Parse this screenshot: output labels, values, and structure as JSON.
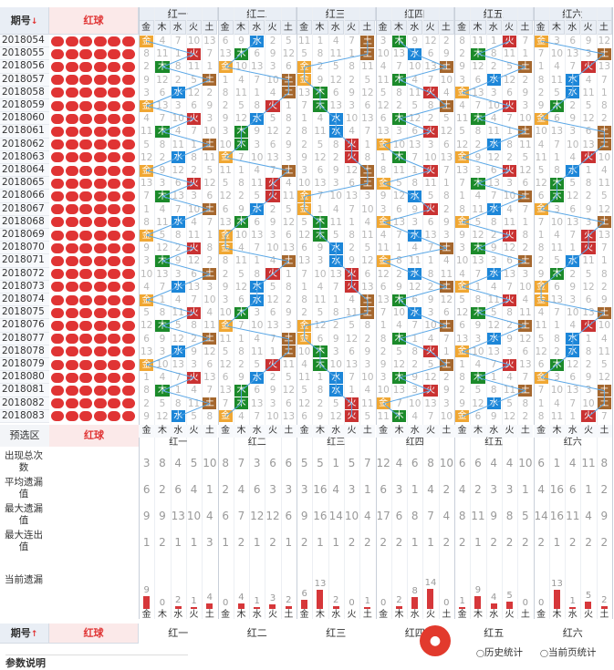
{
  "header": {
    "period_label": "期号",
    "period_sort_icon": "↓",
    "red_label": "红球",
    "groups": [
      "红一",
      "红二",
      "红三",
      "红四",
      "红五",
      "红六"
    ],
    "elements": [
      "金",
      "木",
      "水",
      "火",
      "土"
    ]
  },
  "periods": [
    "2018054",
    "2018055",
    "2018056",
    "2018057",
    "2018058",
    "2018059",
    "2018060",
    "2018061",
    "2018062",
    "2018063",
    "2018064",
    "2018065",
    "2018066",
    "2018067",
    "2018068",
    "2018069",
    "2018070",
    "2018071",
    "2018072",
    "2018073",
    "2018074",
    "2018075",
    "2018076",
    "2018077",
    "2018078",
    "2018079",
    "2018080",
    "2018081",
    "2018082",
    "2018083"
  ],
  "preselect": {
    "label": "预选区",
    "red_label": "红球"
  },
  "stats": {
    "rows": [
      {
        "label": "出现总次数",
        "values": [
          "3",
          "8",
          "4",
          "5",
          "10",
          "8",
          "7",
          "3",
          "6",
          "6",
          "5",
          "5",
          "1",
          "5",
          "7",
          "12",
          "4",
          "6",
          "8",
          "10",
          "6",
          "6",
          "4",
          "4",
          "10",
          "6",
          "1",
          "4",
          "11",
          "8"
        ]
      },
      {
        "label": "平均遗漏值",
        "values": [
          "6",
          "2",
          "6",
          "4",
          "1",
          "2",
          "4",
          "6",
          "3",
          "3",
          "3",
          "16",
          "4",
          "3",
          "1",
          "6",
          "3",
          "1",
          "4",
          "2",
          "4",
          "2",
          "3",
          "3",
          "1",
          "4",
          "16",
          "6",
          "1",
          "2"
        ]
      },
      {
        "label": "最大遗漏值",
        "values": [
          "9",
          "9",
          "13",
          "10",
          "4",
          "6",
          "7",
          "12",
          "12",
          "6",
          "9",
          "16",
          "14",
          "10",
          "4",
          "17",
          "6",
          "8",
          "7",
          "4",
          "8",
          "11",
          "9",
          "8",
          "5",
          "14",
          "16",
          "11",
          "4",
          "9"
        ]
      },
      {
        "label": "最大连出值",
        "values": [
          "1",
          "2",
          "1",
          "1",
          "3",
          "1",
          "2",
          "1",
          "2",
          "1",
          "2",
          "1",
          "1",
          "2",
          "2",
          "2",
          "2",
          "1",
          "1",
          "2",
          "2",
          "1",
          "2",
          "2",
          "2",
          "2",
          "1",
          "2",
          "2",
          "2"
        ]
      }
    ],
    "current_label": "当前遗漏",
    "current_values": [
      "9",
      "0",
      "2",
      "1",
      "4",
      "0",
      "4",
      "1",
      "3",
      "2",
      "6",
      "13",
      "2",
      "0",
      "1",
      "0",
      "2",
      "8",
      "14",
      "0",
      "1",
      "9",
      "4",
      "5",
      "0",
      "0",
      "13",
      "1",
      "5",
      "2"
    ]
  },
  "footer": {
    "period_label": "期号",
    "period_sort_icon": "↑",
    "red_label": "红球"
  },
  "links": {
    "history": "历史统计",
    "current_page": "当前页统计"
  },
  "section_title": "参数说明",
  "colors": {
    "metal": "#f0a733",
    "wood": "#1b8a2a",
    "water": "#1c86d8",
    "fire": "#c93232",
    "earth": "#a5672e",
    "ball": "#e03434"
  }
}
